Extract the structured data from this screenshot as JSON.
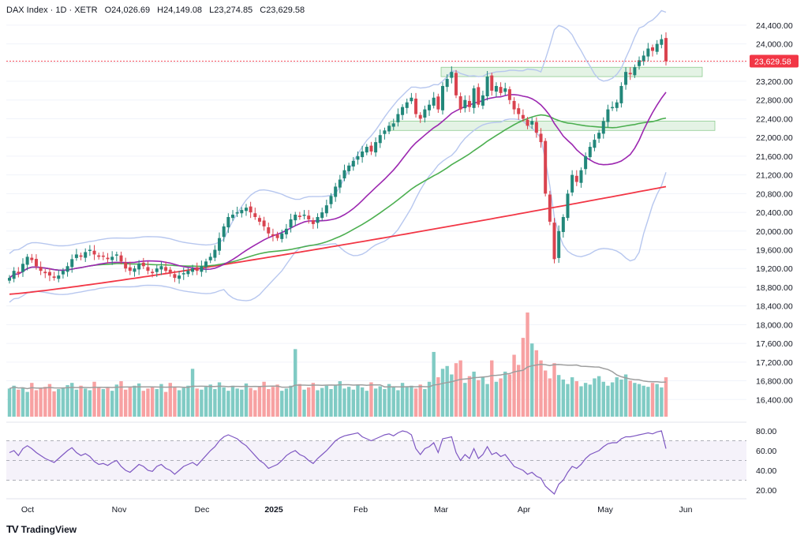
{
  "header": {
    "symbol": "DAX Index · 1D · XETR",
    "open": "O24,026.69",
    "high": "H24,149.08",
    "low": "L23,274.85",
    "close": "C23,629.58"
  },
  "branding": {
    "name": "TradingView",
    "mark": "TV"
  },
  "chart_data": {
    "type": "candlestick",
    "price_axis": {
      "ticks": [
        "24,400.00",
        "24,000.00",
        "23,600.00",
        "23,200.00",
        "22,800.00",
        "22,400.00",
        "22,000.00",
        "21,600.00",
        "21,200.00",
        "20,800.00",
        "20,400.00",
        "20,000.00",
        "19,600.00",
        "19,200.00",
        "18,800.00",
        "18,400.00",
        "18,000.00",
        "17,600.00",
        "17,200.00",
        "16,800.00",
        "16,400.00"
      ],
      "range": [
        16000,
        24600
      ]
    },
    "last_price": {
      "label": "23,629.58",
      "value": 23629.58,
      "color": "#f23645"
    },
    "time_axis": {
      "labels": [
        "Oct",
        "Nov",
        "Dec",
        "2025",
        "Feb",
        "Mar",
        "Apr",
        "May",
        "Jun"
      ]
    },
    "rsi_axis": {
      "ticks": [
        "80.00",
        "60.00",
        "40.00",
        "20.00"
      ],
      "levels": [
        70,
        50,
        30
      ]
    },
    "closes": [
      19000,
      19150,
      19100,
      19300,
      19450,
      19380,
      19250,
      19150,
      19100,
      19050,
      19000,
      19050,
      19150,
      19250,
      19400,
      19500,
      19450,
      19550,
      19600,
      19500,
      19450,
      19450,
      19400,
      19450,
      19500,
      19350,
      19200,
      19150,
      19200,
      19300,
      19250,
      19150,
      19100,
      19200,
      19250,
      19150,
      19100,
      19000,
      19050,
      19100,
      19150,
      19200,
      19150,
      19250,
      19350,
      19450,
      19600,
      19850,
      20100,
      20300,
      20350,
      20400,
      20450,
      20500,
      20400,
      20300,
      20200,
      20100,
      19950,
      19900,
      19850,
      19950,
      20050,
      20250,
      20350,
      20300,
      20350,
      20250,
      20150,
      20300,
      20400,
      20550,
      20750,
      20950,
      21100,
      21300,
      21400,
      21500,
      21600,
      21700,
      21800,
      21700,
      21900,
      22050,
      22150,
      22250,
      22300,
      22500,
      22650,
      22750,
      22850,
      22500,
      22400,
      22600,
      22700,
      22850,
      22600,
      23100,
      23250,
      23400,
      22900,
      22600,
      22800,
      22650,
      23050,
      22700,
      22900,
      23300,
      23000,
      23100,
      22950,
      23050,
      22800,
      22600,
      22500,
      22400,
      22250,
      22350,
      22100,
      21900,
      20800,
      20200,
      19400,
      20000,
      20300,
      20800,
      21200,
      21050,
      21300,
      21600,
      21800,
      21950,
      22100,
      22350,
      22600,
      22650,
      22750,
      23100,
      23400,
      23350,
      23500,
      23650,
      23750,
      23900,
      23850,
      24000,
      24100,
      23629.58
    ],
    "series": [
      {
        "name": "",
        "color": "#f23645",
        "start": 18650,
        "end": 20950
      },
      {
        "name": "",
        "color": "#4caf50"
      },
      {
        "name": "",
        "color": "#9c27b0"
      },
      {
        "name": "",
        "color": "#b7c7ef"
      }
    ],
    "zones": [
      {
        "low": 23300,
        "high": 23500
      },
      {
        "low": 22150,
        "high": 22350
      }
    ],
    "volume": {
      "up_color": "#80cbc4",
      "down_color": "#f7a1a2",
      "values": [
        50,
        55,
        48,
        52,
        44,
        60,
        47,
        51,
        53,
        58,
        45,
        49,
        52,
        56,
        60,
        48,
        55,
        50,
        47,
        62,
        53,
        49,
        51,
        46,
        57,
        63,
        48,
        52,
        55,
        59,
        46,
        50,
        53,
        49,
        58,
        44,
        60,
        52,
        47,
        51,
        55,
        85,
        50,
        48,
        53,
        57,
        49,
        61,
        52,
        46,
        55,
        50,
        48,
        59,
        51,
        47,
        54,
        62,
        49,
        53,
        57,
        46,
        50,
        55,
        120,
        58,
        48,
        52,
        60,
        47,
        51,
        55,
        49,
        56,
        63,
        50,
        53,
        48,
        57,
        52,
        46,
        61,
        50,
        54,
        49,
        58,
        52,
        47,
        60,
        53,
        55,
        50,
        57,
        49,
        62,
        115,
        70,
        85,
        90,
        75,
        95,
        100,
        60,
        72,
        80,
        65,
        70,
        58,
        100,
        62,
        68,
        80,
        75,
        110,
        92,
        140,
        185,
        130,
        118,
        100,
        82,
        68,
        95,
        74,
        66,
        58,
        70,
        63,
        54,
        60,
        57,
        68,
        72,
        62,
        55,
        61,
        70,
        66,
        75,
        64,
        60,
        58,
        55,
        53,
        60,
        58,
        52,
        70
      ],
      "ma_color": "#9e9e9e"
    },
    "rsi": {
      "color": "#7e57c2",
      "values": [
        58,
        60,
        55,
        62,
        65,
        62,
        58,
        55,
        52,
        50,
        48,
        52,
        56,
        60,
        63,
        58,
        55,
        57,
        54,
        49,
        46,
        47,
        45,
        48,
        50,
        44,
        40,
        38,
        42,
        46,
        44,
        40,
        39,
        44,
        46,
        42,
        40,
        36,
        40,
        44,
        46,
        48,
        45,
        50,
        55,
        60,
        64,
        70,
        74,
        76,
        74,
        72,
        68,
        65,
        60,
        55,
        50,
        47,
        42,
        44,
        46,
        50,
        55,
        58,
        60,
        56,
        54,
        50,
        47,
        52,
        56,
        60,
        65,
        70,
        73,
        75,
        76,
        77,
        78,
        74,
        72,
        70,
        72,
        74,
        76,
        77,
        75,
        78,
        80,
        79,
        76,
        62,
        56,
        62,
        64,
        68,
        58,
        72,
        73,
        74,
        58,
        50,
        56,
        52,
        62,
        52,
        56,
        64,
        56,
        58,
        54,
        56,
        50,
        44,
        42,
        40,
        36,
        38,
        34,
        32,
        24,
        20,
        16,
        26,
        30,
        38,
        44,
        42,
        46,
        52,
        56,
        58,
        60,
        64,
        67,
        68,
        68,
        72,
        74,
        74,
        75,
        76,
        77,
        78,
        77,
        79,
        80,
        62
      ]
    }
  }
}
